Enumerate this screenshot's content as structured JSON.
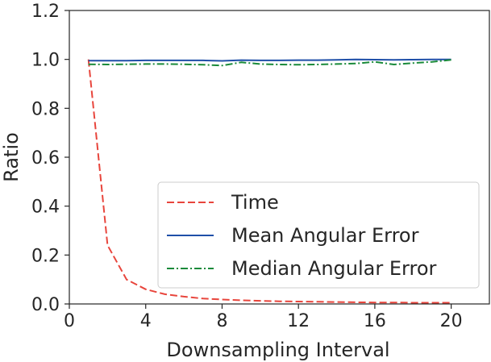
{
  "chart_data": {
    "type": "line",
    "xlabel": "Downsampling Interval",
    "ylabel": "Ratio",
    "xlim": [
      0,
      22
    ],
    "ylim": [
      0,
      1.2
    ],
    "xticks": [
      0,
      4,
      8,
      12,
      16,
      20
    ],
    "yticks": [
      0.0,
      0.2,
      0.4,
      0.6,
      0.8,
      1.0,
      1.2
    ],
    "xtick_labels": [
      "0",
      "4",
      "8",
      "12",
      "16",
      "20"
    ],
    "ytick_labels": [
      "0.0",
      "0.2",
      "0.4",
      "0.6",
      "0.8",
      "1.0",
      "1.2"
    ],
    "grid": false,
    "legend_position": "lower-right",
    "x": [
      1,
      2,
      3,
      4,
      5,
      6,
      7,
      8,
      9,
      10,
      11,
      12,
      13,
      14,
      15,
      16,
      17,
      18,
      19,
      20
    ],
    "series": [
      {
        "name": "Time",
        "color": "#e8453c",
        "style": "dashed",
        "values": [
          1.0,
          0.24,
          0.1,
          0.06,
          0.04,
          0.03,
          0.022,
          0.018,
          0.015,
          0.013,
          0.011,
          0.01,
          0.009,
          0.008,
          0.007,
          0.006,
          0.006,
          0.005,
          0.005,
          0.005
        ]
      },
      {
        "name": "Mean Angular Error",
        "color": "#1f4fa8",
        "style": "solid",
        "values": [
          0.995,
          0.995,
          0.995,
          0.996,
          0.996,
          0.996,
          0.996,
          0.994,
          0.997,
          0.996,
          0.996,
          0.997,
          0.997,
          0.998,
          1.0,
          0.999,
          0.998,
          0.999,
          1.0,
          1.0
        ]
      },
      {
        "name": "Median Angular Error",
        "color": "#1a8a3a",
        "style": "dashdot",
        "values": [
          0.98,
          0.979,
          0.98,
          0.981,
          0.981,
          0.98,
          0.978,
          0.975,
          0.988,
          0.981,
          0.979,
          0.978,
          0.979,
          0.981,
          0.983,
          0.99,
          0.979,
          0.985,
          0.99,
          0.998
        ]
      }
    ]
  }
}
